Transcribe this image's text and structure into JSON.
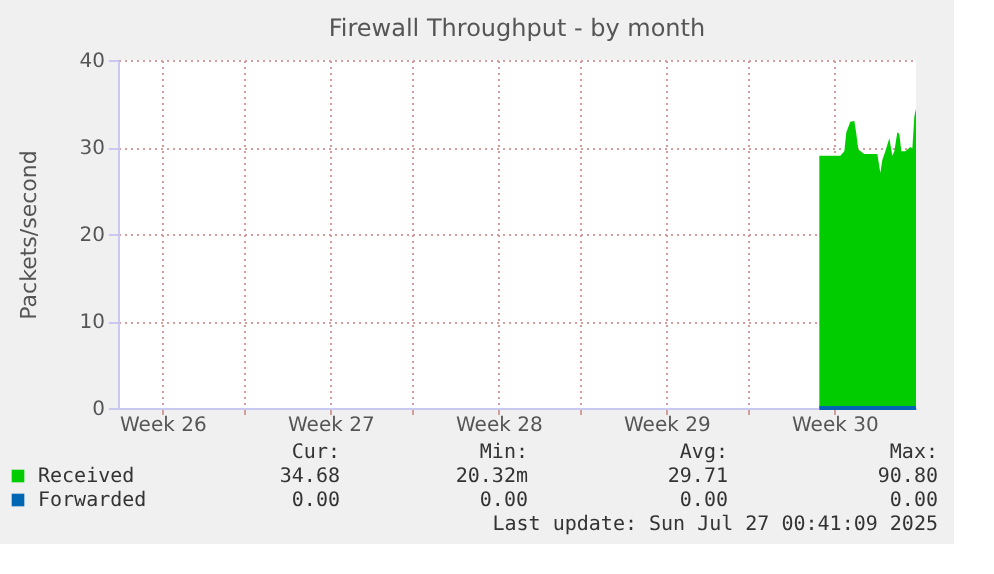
{
  "chart_data": {
    "type": "area",
    "title": "Firewall Throughput - by month",
    "ylabel": "Packets/second",
    "x": [
      "2025-07-23T00:00",
      "2025-07-23T21:00",
      "2025-07-24T01:00",
      "2025-07-24T03:00",
      "2025-07-24T07:00",
      "2025-07-24T11:00",
      "2025-07-24T13:00",
      "2025-07-24T15:00",
      "2025-07-24T21:00",
      "2025-07-25T10:00",
      "2025-07-25T13:00",
      "2025-07-25T15:00",
      "2025-07-25T18:00",
      "2025-07-25T22:00",
      "2025-07-26T01:00",
      "2025-07-26T03:00",
      "2025-07-26T06:00",
      "2025-07-26T08:00",
      "2025-07-26T10:00",
      "2025-07-26T14:00",
      "2025-07-26T19:00",
      "2025-07-26T21:00",
      "2025-07-26T23:00",
      "2025-07-27T00:40"
    ],
    "series": [
      {
        "name": "Received",
        "color": "#00cc00",
        "values": [
          29.0,
          29.0,
          29.5,
          31.7,
          32.9,
          33.0,
          31.5,
          29.7,
          29.2,
          29.2,
          27.0,
          28.5,
          29.5,
          31.0,
          29.0,
          29.5,
          31.7,
          31.5,
          29.5,
          29.5,
          30.0,
          29.8,
          33.5,
          34.4
        ]
      },
      {
        "name": "Forwarded",
        "type": "line",
        "color": "#0066b3",
        "values": [
          0,
          0,
          0,
          0,
          0,
          0,
          0,
          0,
          0,
          0,
          0,
          0,
          0,
          0,
          0,
          0,
          0,
          0,
          0,
          0,
          0,
          0,
          0,
          0
        ]
      }
    ],
    "xlim": [
      "2025-06-23T18:40",
      "2025-07-27T00:40"
    ],
    "xticks": [
      {
        "value": "2025-06-25T15:00",
        "label": "Week 26"
      },
      {
        "value": "2025-06-29T00:40",
        "label": null
      },
      {
        "value": "2025-07-02T15:00",
        "label": "Week 27"
      },
      {
        "value": "2025-07-06T00:40",
        "label": null
      },
      {
        "value": "2025-07-09T15:00",
        "label": "Week 28"
      },
      {
        "value": "2025-07-13T00:40",
        "label": null
      },
      {
        "value": "2025-07-16T15:00",
        "label": "Week 29"
      },
      {
        "value": "2025-07-20T00:40",
        "label": null
      },
      {
        "value": "2025-07-23T15:00",
        "label": "Week 30"
      }
    ],
    "ylim": [
      0,
      40
    ],
    "yticks": [
      0,
      10,
      20,
      30,
      40
    ],
    "grid": true,
    "legend": "bottom",
    "annotations": [
      "Cur:",
      "Min:",
      "Avg:",
      "Max:",
      "34.68",
      "20.32m",
      "29.71",
      "90.80",
      "0.00",
      "0.00",
      "0.00",
      "0.00",
      "Last update: Sun Jul 27 00:41:09 2025"
    ]
  }
}
